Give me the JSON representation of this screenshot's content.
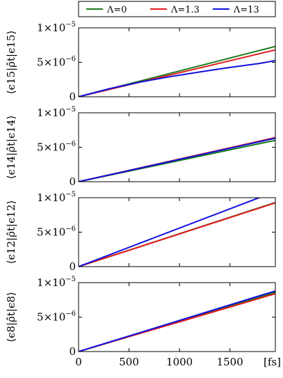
{
  "chart_data": {
    "type": "line",
    "shared_x": {
      "xlabel": "[fs]",
      "xlim": [
        0,
        1950
      ],
      "xticks": [
        0,
        500,
        1000,
        1500
      ],
      "xtick_labels": [
        "0",
        "500",
        "1000",
        "1500"
      ]
    },
    "legend": {
      "placement": "top, outside",
      "entries": [
        {
          "label": "Λ=0",
          "color": "#1a7a1a"
        },
        {
          "label": "Λ=1.3",
          "color": "#e31a1c"
        },
        {
          "label": "Λ=13",
          "color": "#1010e0"
        }
      ]
    },
    "panels": [
      {
        "ylabel": "⟨ϵ15|ρ̂t|ϵ15⟩",
        "ylim": [
          0,
          1e-05
        ],
        "ytick_labels": [
          {
            "value": 0,
            "mantissa": "0",
            "exponent": ""
          },
          {
            "value": 5e-06,
            "mantissa": "5×10",
            "exponent": "−6"
          },
          {
            "value": 1e-05,
            "mantissa": "1×10",
            "exponent": "−5"
          }
        ],
        "series": [
          {
            "name": "Λ=0",
            "x": [
              0,
              1950
            ],
            "y": [
              0,
              7.3e-06
            ]
          },
          {
            "name": "Λ=1.3",
            "x": [
              0,
              1950
            ],
            "y": [
              0,
              6.8e-06
            ]
          },
          {
            "name": "Λ=13",
            "x": [
              0,
              300,
              600,
              900,
              1200,
              1500,
              1800,
              1950
            ],
            "y": [
              0,
              1.15e-06,
              2.1e-06,
              2.9e-06,
              3.6e-06,
              4.25e-06,
              4.85e-06,
              5.25e-06
            ]
          }
        ]
      },
      {
        "ylabel": "⟨ϵ14|ρ̂t|ϵ14⟩",
        "ylim": [
          0,
          1e-05
        ],
        "ytick_labels": [
          {
            "value": 0,
            "mantissa": "0",
            "exponent": ""
          },
          {
            "value": 5e-06,
            "mantissa": "5×10",
            "exponent": "−6"
          },
          {
            "value": 1e-05,
            "mantissa": "1×10",
            "exponent": "−5"
          }
        ],
        "series": [
          {
            "name": "Λ=0",
            "x": [
              0,
              1950
            ],
            "y": [
              0,
              6e-06
            ]
          },
          {
            "name": "Λ=1.3",
            "x": [
              0,
              1950
            ],
            "y": [
              0,
              6.4e-06
            ]
          },
          {
            "name": "Λ=13",
            "x": [
              0,
              1950
            ],
            "y": [
              0,
              6.3e-06
            ]
          }
        ]
      },
      {
        "ylabel": "⟨ϵ12|ρ̂t|ϵ12⟩",
        "ylim": [
          0,
          1e-05
        ],
        "ytick_labels": [
          {
            "value": 0,
            "mantissa": "0",
            "exponent": ""
          },
          {
            "value": 5e-06,
            "mantissa": "5×10",
            "exponent": "−6"
          },
          {
            "value": 1e-05,
            "mantissa": "1×10",
            "exponent": "−5"
          }
        ],
        "series": [
          {
            "name": "Λ=0",
            "x": [
              0,
              1950
            ],
            "y": [
              0,
              9.3e-06
            ]
          },
          {
            "name": "Λ=1.3",
            "x": [
              0,
              1950
            ],
            "y": [
              0,
              9.25e-06
            ]
          },
          {
            "name": "Λ=13",
            "x": [
              0,
              1950
            ],
            "y": [
              0,
              1.09e-05
            ]
          }
        ]
      },
      {
        "ylabel": "⟨ϵ8|ρ̂t|ϵ8⟩",
        "ylim": [
          0,
          1e-05
        ],
        "ytick_labels": [
          {
            "value": 0,
            "mantissa": "0",
            "exponent": ""
          },
          {
            "value": 5e-06,
            "mantissa": "5×10",
            "exponent": "−6"
          },
          {
            "value": 1e-05,
            "mantissa": "1×10",
            "exponent": "−5"
          }
        ],
        "series": [
          {
            "name": "Λ=0",
            "x": [
              0,
              1950
            ],
            "y": [
              0,
              8.6e-06
            ]
          },
          {
            "name": "Λ=1.3",
            "x": [
              0,
              1950
            ],
            "y": [
              0,
              8.4e-06
            ]
          },
          {
            "name": "Λ=13",
            "x": [
              0,
              1950
            ],
            "y": [
              0,
              8.8e-06
            ]
          }
        ]
      }
    ]
  }
}
